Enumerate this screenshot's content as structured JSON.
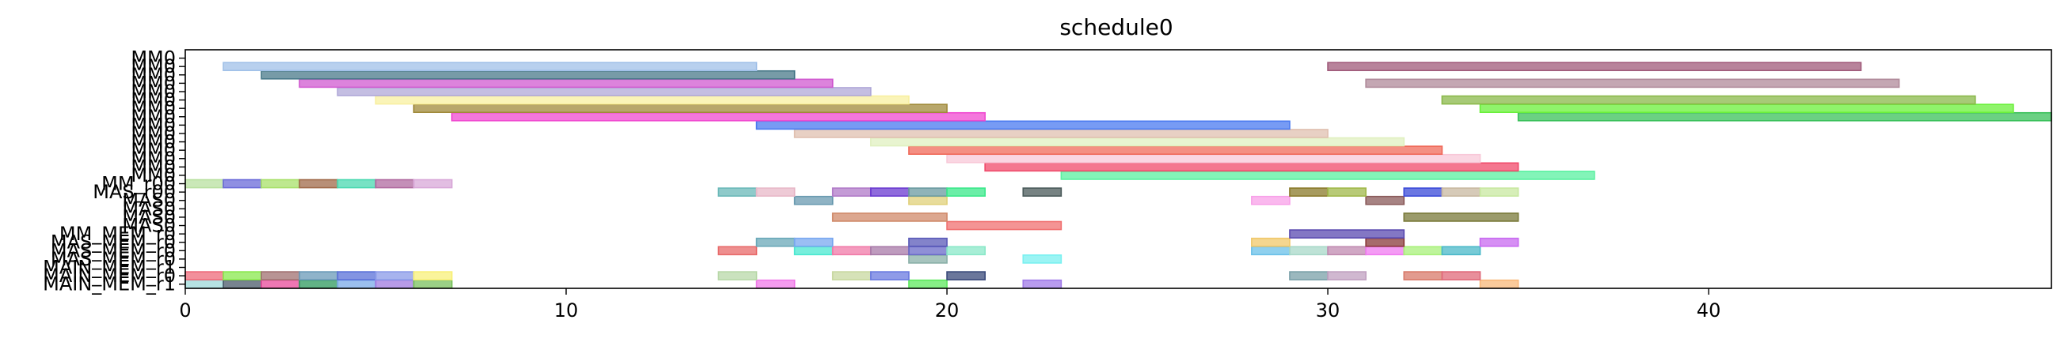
{
  "chart_data": {
    "type": "gantt",
    "title": "schedule0",
    "xlabel": "",
    "ylabel": "",
    "xlim": [
      0,
      49
    ],
    "x_ticks": [
      0,
      10,
      20,
      30,
      40
    ],
    "grid": false,
    "rows": [
      "MAIN_MEM_r1",
      "MAIN_MEM_r0",
      "MAIN_MEM_r1",
      "MAS_MEM_r0",
      "MAS_MEM_r0",
      "MAS_MEM_r0",
      "MM_MEM_r0",
      "MAS0",
      "MAS0",
      "MAS0",
      "MAS0",
      "MAS_r00",
      "MM_r00",
      "MM0",
      "MM0",
      "MM0",
      "MM0",
      "MM0",
      "MM0",
      "MM0",
      "MM0",
      "MM0",
      "MM0",
      "MM0",
      "MM0",
      "MM0",
      "MM0",
      "MM0"
    ],
    "tasks": [
      {
        "row": 0,
        "start": 0,
        "end": 1,
        "color": "#9ed9d9"
      },
      {
        "row": 0,
        "start": 1,
        "end": 2,
        "color": "#4a5a6a"
      },
      {
        "row": 0,
        "start": 2,
        "end": 3,
        "color": "#e84a9a"
      },
      {
        "row": 0,
        "start": 3,
        "end": 4,
        "color": "#2e9a5e"
      },
      {
        "row": 0,
        "start": 4,
        "end": 5,
        "color": "#7aaae8"
      },
      {
        "row": 0,
        "start": 5,
        "end": 6,
        "color": "#a07ae0"
      },
      {
        "row": 0,
        "start": 6,
        "end": 7,
        "color": "#7ac05e"
      },
      {
        "row": 0,
        "start": 15,
        "end": 16,
        "color": "#f07ae8"
      },
      {
        "row": 0,
        "start": 19,
        "end": 20,
        "color": "#5ee85e"
      },
      {
        "row": 0,
        "start": 22,
        "end": 23,
        "color": "#a07ae8"
      },
      {
        "row": 0,
        "start": 34,
        "end": 35,
        "color": "#f8b87a"
      },
      {
        "row": 1,
        "start": 0,
        "end": 1,
        "color": "#ee6a7a"
      },
      {
        "row": 1,
        "start": 1,
        "end": 2,
        "color": "#8ae84e"
      },
      {
        "row": 1,
        "start": 2,
        "end": 3,
        "color": "#a07070"
      },
      {
        "row": 1,
        "start": 3,
        "end": 4,
        "color": "#6a9ab8"
      },
      {
        "row": 1,
        "start": 4,
        "end": 5,
        "color": "#5a70d8"
      },
      {
        "row": 1,
        "start": 5,
        "end": 6,
        "color": "#8a9ae8"
      },
      {
        "row": 1,
        "start": 6,
        "end": 7,
        "color": "#f8f07a"
      },
      {
        "row": 1,
        "start": 14,
        "end": 15,
        "color": "#b8d8a8"
      },
      {
        "row": 1,
        "start": 17,
        "end": 18,
        "color": "#c8d8a0"
      },
      {
        "row": 1,
        "start": 18,
        "end": 19,
        "color": "#6a7ae0"
      },
      {
        "row": 1,
        "start": 20,
        "end": 21,
        "color": "#3a4a7a"
      },
      {
        "row": 1,
        "start": 29,
        "end": 30,
        "color": "#7aa0a8"
      },
      {
        "row": 1,
        "start": 30,
        "end": 31,
        "color": "#c0a0c0"
      },
      {
        "row": 1,
        "start": 32,
        "end": 33,
        "color": "#d87a6a"
      },
      {
        "row": 1,
        "start": 33,
        "end": 34,
        "color": "#e06a7a"
      },
      {
        "row": 3,
        "start": 19,
        "end": 20,
        "color": "#8ab0a8"
      },
      {
        "row": 3,
        "start": 22,
        "end": 23,
        "color": "#7af0f0"
      },
      {
        "row": 4,
        "start": 14,
        "end": 15,
        "color": "#e86a6a"
      },
      {
        "row": 4,
        "start": 16,
        "end": 17,
        "color": "#4ae8d0"
      },
      {
        "row": 4,
        "start": 17,
        "end": 18,
        "color": "#f07aa8"
      },
      {
        "row": 4,
        "start": 18,
        "end": 19,
        "color": "#a87aa8"
      },
      {
        "row": 4,
        "start": 19,
        "end": 20,
        "color": "#6a6ac8"
      },
      {
        "row": 4,
        "start": 20,
        "end": 21,
        "color": "#8ae8c8"
      },
      {
        "row": 4,
        "start": 28,
        "end": 29,
        "color": "#6ac0e8"
      },
      {
        "row": 4,
        "start": 29,
        "end": 30,
        "color": "#a8d8c8"
      },
      {
        "row": 4,
        "start": 30,
        "end": 31,
        "color": "#c08ab0"
      },
      {
        "row": 4,
        "start": 31,
        "end": 32,
        "color": "#f07af0"
      },
      {
        "row": 4,
        "start": 32,
        "end": 33,
        "color": "#a8f07a"
      },
      {
        "row": 4,
        "start": 33,
        "end": 34,
        "color": "#4ab8c8"
      },
      {
        "row": 5,
        "start": 15,
        "end": 16,
        "color": "#6aa8b8"
      },
      {
        "row": 5,
        "start": 16,
        "end": 17,
        "color": "#7aa8f0"
      },
      {
        "row": 5,
        "start": 19,
        "end": 20,
        "color": "#5a5ab8"
      },
      {
        "row": 5,
        "start": 28,
        "end": 29,
        "color": "#f0c86a"
      },
      {
        "row": 5,
        "start": 31,
        "end": 32,
        "color": "#8a3a3a"
      },
      {
        "row": 5,
        "start": 34,
        "end": 35,
        "color": "#c86af0"
      },
      {
        "row": 6,
        "start": 29,
        "end": 32,
        "color": "#5a4ab0"
      },
      {
        "row": 7,
        "start": 20,
        "end": 23,
        "color": "#f07070"
      },
      {
        "row": 8,
        "start": 17,
        "end": 20,
        "color": "#d08a6a"
      },
      {
        "row": 8,
        "start": 32,
        "end": 35,
        "color": "#7a7a3a"
      },
      {
        "row": 10,
        "start": 16,
        "end": 17,
        "color": "#6a9ab0"
      },
      {
        "row": 10,
        "start": 19,
        "end": 20,
        "color": "#e0d07a"
      },
      {
        "row": 10,
        "start": 28,
        "end": 29,
        "color": "#f8a0e8"
      },
      {
        "row": 10,
        "start": 31,
        "end": 32,
        "color": "#8a5a5a"
      },
      {
        "row": 11,
        "start": 14,
        "end": 15,
        "color": "#6ab8b8"
      },
      {
        "row": 11,
        "start": 15,
        "end": 16,
        "color": "#e8b8c8"
      },
      {
        "row": 11,
        "start": 17,
        "end": 18,
        "color": "#b07ac8"
      },
      {
        "row": 11,
        "start": 18,
        "end": 19,
        "color": "#6a3ad0"
      },
      {
        "row": 11,
        "start": 19,
        "end": 20,
        "color": "#6a9aa0"
      },
      {
        "row": 11,
        "start": 20,
        "end": 21,
        "color": "#3ae88a"
      },
      {
        "row": 11,
        "start": 22,
        "end": 23,
        "color": "#4a5a5a"
      },
      {
        "row": 11,
        "start": 29,
        "end": 30,
        "color": "#8a7a2a"
      },
      {
        "row": 11,
        "start": 30,
        "end": 31,
        "color": "#a0b84a"
      },
      {
        "row": 11,
        "start": 32,
        "end": 33,
        "color": "#3a4ad8"
      },
      {
        "row": 11,
        "start": 33,
        "end": 34,
        "color": "#c8b8a0"
      },
      {
        "row": 11,
        "start": 34,
        "end": 35,
        "color": "#c8e8a0"
      },
      {
        "row": 12,
        "start": 0,
        "end": 1,
        "color": "#b8e0a0"
      },
      {
        "row": 12,
        "start": 1,
        "end": 2,
        "color": "#6a6ad8"
      },
      {
        "row": 12,
        "start": 2,
        "end": 3,
        "color": "#a8e06a"
      },
      {
        "row": 12,
        "start": 3,
        "end": 4,
        "color": "#a06a4a"
      },
      {
        "row": 12,
        "start": 4,
        "end": 5,
        "color": "#4ad8b0"
      },
      {
        "row": 12,
        "start": 5,
        "end": 6,
        "color": "#b06aa0"
      },
      {
        "row": 12,
        "start": 6,
        "end": 7,
        "color": "#d8a8d8"
      },
      {
        "row": 13,
        "start": 23,
        "end": 37,
        "color": "#5af0a0"
      },
      {
        "row": 14,
        "start": 21,
        "end": 35,
        "color": "#f04a6a"
      },
      {
        "row": 15,
        "start": 20,
        "end": 34,
        "color": "#f8c8d8"
      },
      {
        "row": 16,
        "start": 19,
        "end": 33,
        "color": "#f06a5a"
      },
      {
        "row": 17,
        "start": 18,
        "end": 32,
        "color": "#e0f0c0"
      },
      {
        "row": 18,
        "start": 16,
        "end": 30,
        "color": "#e0c0b0"
      },
      {
        "row": 19,
        "start": 15,
        "end": 29,
        "color": "#4a7af0"
      },
      {
        "row": 20,
        "start": 7,
        "end": 21,
        "color": "#f04ad0"
      },
      {
        "row": 20,
        "start": 35,
        "end": 49,
        "color": "#3ac05a"
      },
      {
        "row": 21,
        "start": 6,
        "end": 20,
        "color": "#a08a3a"
      },
      {
        "row": 21,
        "start": 34,
        "end": 48,
        "color": "#6af03a"
      },
      {
        "row": 22,
        "start": 5,
        "end": 19,
        "color": "#f8f0a0"
      },
      {
        "row": 22,
        "start": 33,
        "end": 47,
        "color": "#8ab84a"
      },
      {
        "row": 23,
        "start": 4,
        "end": 18,
        "color": "#b0a8d8"
      },
      {
        "row": 24,
        "start": 3,
        "end": 17,
        "color": "#d05ad0"
      },
      {
        "row": 24,
        "start": 31,
        "end": 45,
        "color": "#b08a9a"
      },
      {
        "row": 25,
        "start": 2,
        "end": 16,
        "color": "#4a7a8a"
      },
      {
        "row": 26,
        "start": 1,
        "end": 15,
        "color": "#a0c0e8"
      },
      {
        "row": 26,
        "start": 30,
        "end": 44,
        "color": "#a05a7a"
      }
    ]
  }
}
